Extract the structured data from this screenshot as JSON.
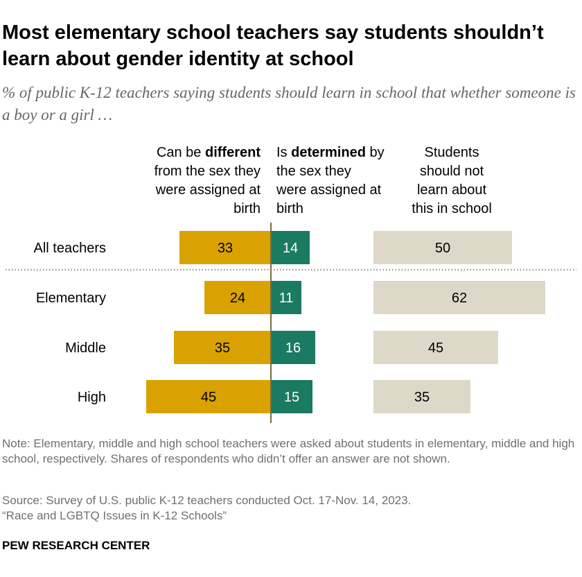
{
  "title": "Most elementary school teachers say students shouldn’t learn about gender identity at school",
  "subtitle": "% of public K-12 teachers saying students should learn in school that whether someone is a boy or a girl …",
  "colors": {
    "different": "#d9a200",
    "determined": "#1b7a62",
    "not_learn": "#ddd8c8",
    "divider": "#7a6a3a"
  },
  "chart_data": {
    "type": "bar",
    "categories": [
      "All teachers",
      "Elementary",
      "Middle",
      "High"
    ],
    "series": [
      {
        "name": [
          "Can be ",
          "different",
          " from the sex they",
          "were assigned at",
          "birth"
        ],
        "values": [
          33,
          24,
          35,
          45
        ]
      },
      {
        "name": [
          "Is ",
          "determined",
          " by",
          "the sex they",
          "were assigned at",
          "birth"
        ],
        "values": [
          14,
          11,
          16,
          15
        ]
      },
      {
        "name": [
          "Students",
          "should not",
          "learn about",
          "this in school"
        ],
        "values": [
          50,
          62,
          45,
          35
        ]
      }
    ]
  },
  "note": "Note: Elementary, middle and high school teachers were asked about students in elementary, middle and high school, respectively. Shares of respondents who didn’t offer an answer are not shown.",
  "source_lines": [
    "Source: Survey of U.S. public K-12 teachers conducted Oct. 17-Nov. 14, 2023.",
    "“Race and LGBTQ Issues in K-12 Schools”"
  ],
  "brand": "PEW RESEARCH CENTER"
}
